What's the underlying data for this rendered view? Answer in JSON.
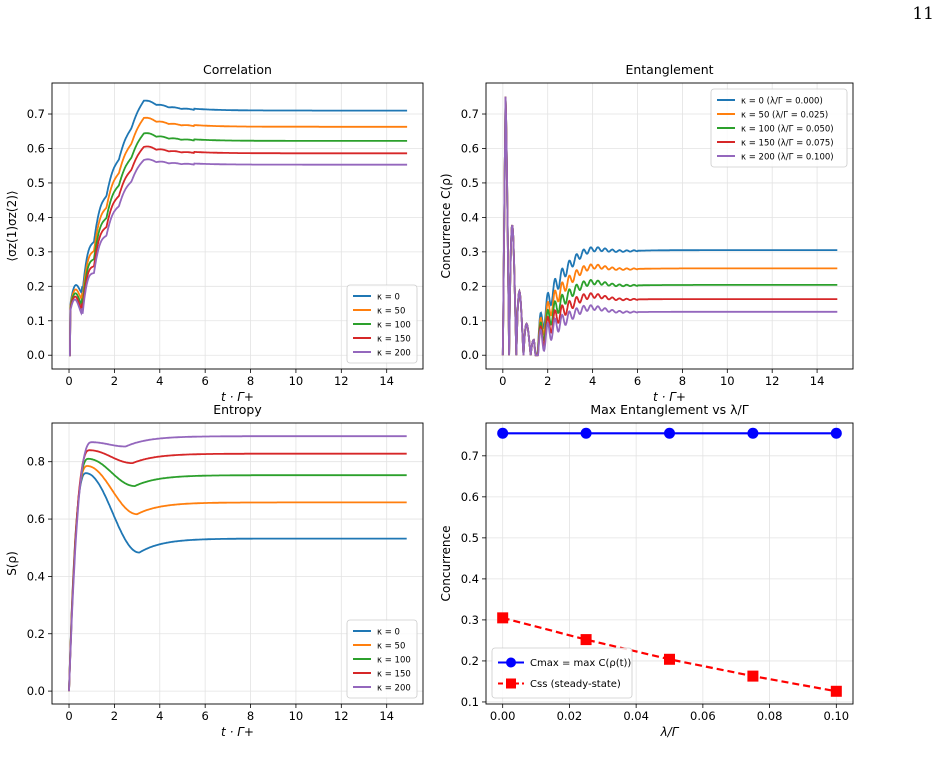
{
  "page_number": "11",
  "chart_data": [
    {
      "id": "correlation",
      "type": "line",
      "title": "Correlation",
      "xlabel": "t · Γ+",
      "ylabel": "⟨σz(1)σz(2)⟩",
      "xlim": [
        -0.75,
        15.6
      ],
      "ylim": [
        -0.04,
        0.79
      ],
      "xticks": [
        0,
        2,
        4,
        6,
        8,
        10,
        12,
        14
      ],
      "yticks": [
        0.0,
        0.1,
        0.2,
        0.3,
        0.4,
        0.5,
        0.6,
        0.7
      ],
      "grid": true,
      "legend": {
        "placement": "bottom-right"
      },
      "series": [
        {
          "name": "κ = 0",
          "color": "#1f77b4",
          "steady": 0.71,
          "overshoot": 0.04,
          "steady_at_15": 0.71
        },
        {
          "name": "κ = 50",
          "color": "#ff7f0e",
          "steady": 0.663,
          "overshoot": 0.037
        },
        {
          "name": "κ = 100",
          "color": "#2ca02c",
          "steady": 0.622,
          "overshoot": 0.033
        },
        {
          "name": "κ = 150",
          "color": "#d62728",
          "steady": 0.586,
          "overshoot": 0.03
        },
        {
          "name": "κ = 200",
          "color": "#9467bd",
          "steady": 0.553,
          "overshoot": 0.025
        }
      ]
    },
    {
      "id": "entanglement",
      "type": "line",
      "title": "Entanglement",
      "xlabel": "t · Γ+",
      "ylabel": "Concurrence C(ρ)",
      "xlim": [
        -0.75,
        15.6
      ],
      "ylim": [
        -0.04,
        0.79
      ],
      "xticks": [
        0,
        2,
        4,
        6,
        8,
        10,
        12,
        14
      ],
      "yticks": [
        0.0,
        0.1,
        0.2,
        0.3,
        0.4,
        0.5,
        0.6,
        0.7
      ],
      "grid": true,
      "legend": {
        "placement": "top-right"
      },
      "series": [
        {
          "name": "κ = 0  (λ/Γ = 0.000)",
          "color": "#1f77b4",
          "steady": 0.305,
          "peak": 0.755
        },
        {
          "name": "κ = 50  (λ/Γ = 0.025)",
          "color": "#ff7f0e",
          "steady": 0.252,
          "peak": 0.755
        },
        {
          "name": "κ = 100  (λ/Γ = 0.050)",
          "color": "#2ca02c",
          "steady": 0.204,
          "peak": 0.755
        },
        {
          "name": "κ = 150  (λ/Γ = 0.075)",
          "color": "#d62728",
          "steady": 0.163,
          "peak": 0.755
        },
        {
          "name": "κ = 200  (λ/Γ = 0.100)",
          "color": "#9467bd",
          "steady": 0.126,
          "peak": 0.755
        }
      ]
    },
    {
      "id": "entropy",
      "type": "line",
      "title": "Entropy",
      "xlabel": "t · Γ+",
      "ylabel": "S(ρ)",
      "xlim": [
        -0.75,
        15.6
      ],
      "ylim": [
        -0.045,
        0.935
      ],
      "xticks": [
        0,
        2,
        4,
        6,
        8,
        10,
        12,
        14
      ],
      "yticks": [
        0.0,
        0.2,
        0.4,
        0.6,
        0.8
      ],
      "grid": true,
      "legend": {
        "placement": "bottom-right"
      },
      "series": [
        {
          "name": "κ = 0",
          "color": "#1f77b4",
          "peak": 0.76,
          "peak_t": 0.75,
          "dip": 0.483,
          "dip_t": 3.1,
          "steady": 0.532
        },
        {
          "name": "κ = 50",
          "color": "#ff7f0e",
          "peak": 0.785,
          "peak_t": 0.8,
          "dip": 0.617,
          "dip_t": 3.0,
          "steady": 0.658
        },
        {
          "name": "κ = 100",
          "color": "#2ca02c",
          "peak": 0.81,
          "peak_t": 0.85,
          "dip": 0.715,
          "dip_t": 2.9,
          "steady": 0.753
        },
        {
          "name": "κ = 150",
          "color": "#d62728",
          "peak": 0.84,
          "peak_t": 0.9,
          "dip": 0.795,
          "dip_t": 2.8,
          "steady": 0.828
        },
        {
          "name": "κ = 200",
          "color": "#9467bd",
          "peak": 0.868,
          "peak_t": 1.0,
          "dip": 0.853,
          "dip_t": 2.5,
          "steady": 0.889
        }
      ]
    },
    {
      "id": "max-entanglement",
      "type": "line",
      "title": "Max Entanglement vs λ/Γ",
      "xlabel": "λ/Γ",
      "ylabel": "Concurrence",
      "xlim": [
        -0.005,
        0.105
      ],
      "ylim": [
        0.095,
        0.78
      ],
      "xticks": [
        0.0,
        0.02,
        0.04,
        0.06,
        0.08,
        0.1
      ],
      "xtick_labels": [
        "0.00",
        "0.02",
        "0.04",
        "0.06",
        "0.08",
        "0.10"
      ],
      "yticks": [
        0.1,
        0.2,
        0.3,
        0.4,
        0.5,
        0.6,
        0.7
      ],
      "grid": true,
      "legend": {
        "placement": "bottom-left"
      },
      "x": [
        0.0,
        0.025,
        0.05,
        0.075,
        0.1
      ],
      "series": [
        {
          "name": "Cmax = max C(ρ(t))",
          "color": "#0000ff",
          "marker": "circle",
          "linestyle": "solid",
          "values": [
            0.755,
            0.755,
            0.755,
            0.755,
            0.755
          ]
        },
        {
          "name": "Css (steady-state)",
          "color": "#ff0000",
          "marker": "square",
          "linestyle": "dashed",
          "values": [
            0.305,
            0.252,
            0.204,
            0.163,
            0.126
          ]
        }
      ]
    }
  ]
}
